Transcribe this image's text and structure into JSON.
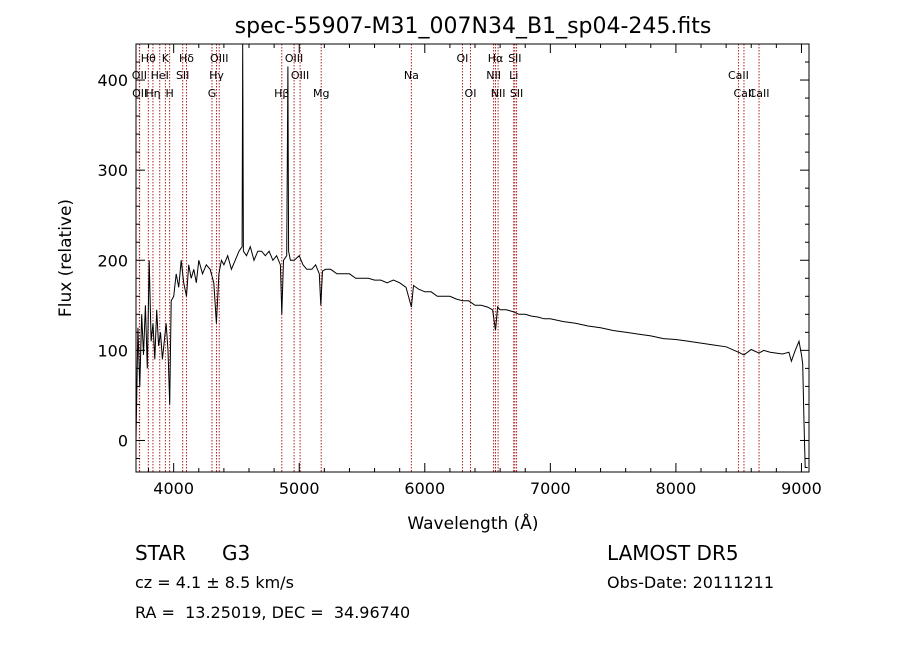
{
  "chart_data": {
    "type": "line",
    "title": "spec-55907-M31_007N34_B1_sp04-245.fits",
    "xlabel": "Wavelength (Å)",
    "ylabel": "Flux (relative)",
    "xlim": [
      3700,
      9060
    ],
    "ylim": [
      -35,
      440
    ],
    "xticks": [
      4000,
      5000,
      6000,
      7000,
      8000,
      9000
    ],
    "yticks": [
      0,
      100,
      200,
      300,
      400
    ],
    "grid": false,
    "line_color": "#000000",
    "marker_color": "#b22222",
    "series": [
      {
        "x": [
          3700,
          3715,
          3730,
          3745,
          3760,
          3775,
          3790,
          3805,
          3820,
          3835,
          3850,
          3865,
          3880,
          3895,
          3910,
          3925,
          3940,
          3955,
          3968,
          3980,
          4000,
          4020,
          4040,
          4060,
          4080,
          4102,
          4120,
          4140,
          4160,
          4180,
          4200,
          4230,
          4260,
          4290,
          4320,
          4340,
          4360,
          4380,
          4400,
          4430,
          4460,
          4490,
          4520,
          4545,
          4550,
          4555,
          4580,
          4610,
          4640,
          4670,
          4700,
          4730,
          4760,
          4790,
          4820,
          4850,
          4861,
          4875,
          4900,
          4910,
          4915,
          4930,
          4960,
          5000,
          5030,
          5060,
          5100,
          5130,
          5160,
          5172,
          5185,
          5210,
          5250,
          5300,
          5350,
          5400,
          5450,
          5500,
          5550,
          5600,
          5650,
          5700,
          5750,
          5800,
          5850,
          5893,
          5910,
          5950,
          6000,
          6050,
          6100,
          6150,
          6200,
          6250,
          6300,
          6350,
          6400,
          6450,
          6500,
          6540,
          6563,
          6580,
          6600,
          6650,
          6700,
          6750,
          6800,
          6850,
          6900,
          6950,
          7000,
          7100,
          7200,
          7300,
          7400,
          7500,
          7600,
          7700,
          7800,
          7900,
          8000,
          8100,
          8200,
          8300,
          8400,
          8498,
          8542,
          8600,
          8662,
          8700,
          8750,
          8800,
          8850,
          8900,
          8920,
          8950,
          8980,
          9000,
          9010,
          9020,
          9030,
          9040,
          9050
        ],
        "y": [
          0,
          125,
          60,
          140,
          95,
          150,
          80,
          200,
          110,
          130,
          90,
          145,
          105,
          120,
          90,
          110,
          130,
          100,
          40,
          155,
          160,
          185,
          170,
          200,
          175,
          160,
          195,
          180,
          190,
          175,
          200,
          185,
          195,
          190,
          175,
          130,
          185,
          200,
          195,
          205,
          190,
          200,
          210,
          215,
          440,
          210,
          205,
          215,
          200,
          210,
          210,
          205,
          210,
          200,
          205,
          195,
          140,
          200,
          205,
          415,
          210,
          200,
          200,
          205,
          195,
          190,
          190,
          195,
          185,
          150,
          188,
          190,
          190,
          185,
          185,
          185,
          180,
          180,
          180,
          178,
          178,
          175,
          178,
          175,
          170,
          148,
          172,
          168,
          165,
          165,
          160,
          160,
          160,
          157,
          155,
          155,
          150,
          150,
          148,
          145,
          122,
          148,
          145,
          145,
          143,
          140,
          140,
          138,
          137,
          135,
          135,
          132,
          130,
          127,
          125,
          122,
          120,
          118,
          116,
          113,
          112,
          110,
          108,
          106,
          104,
          98,
          95,
          101,
          97,
          100,
          98,
          97,
          96,
          98,
          88,
          100,
          110,
          95,
          85,
          20,
          -30,
          -30,
          -30
        ]
      }
    ],
    "lines_row1": [
      {
        "name": "Hθ",
        "x": 3798
      },
      {
        "name": "K",
        "x": 3934
      },
      {
        "name": "Hδ",
        "x": 4102
      },
      {
        "name": "OIII",
        "x": 4363
      },
      {
        "name": "OIII",
        "x": 4959
      },
      {
        "name": "OI",
        "x": 6300
      },
      {
        "name": "Hα",
        "x": 6563
      },
      {
        "name": "SII",
        "x": 6717
      }
    ],
    "lines_row2": [
      {
        "name": "OII",
        "x": 3727
      },
      {
        "name": "HeI",
        "x": 3889
      },
      {
        "name": "SII",
        "x": 4072
      },
      {
        "name": "Hγ",
        "x": 4341
      },
      {
        "name": "OIII",
        "x": 5007
      },
      {
        "name": "Na",
        "x": 5893
      },
      {
        "name": "NII",
        "x": 6548
      },
      {
        "name": "Li",
        "x": 6708
      },
      {
        "name": "CaII",
        "x": 8498
      }
    ],
    "lines_row3": [
      {
        "name": "OII",
        "x": 3729
      },
      {
        "name": "Hη",
        "x": 3835
      },
      {
        "name": "H",
        "x": 3968
      },
      {
        "name": "G",
        "x": 4305
      },
      {
        "name": "Hβ",
        "x": 4861
      },
      {
        "name": "Mg",
        "x": 5175
      },
      {
        "name": "OI",
        "x": 6364
      },
      {
        "name": "NII",
        "x": 6584
      },
      {
        "name": "SII",
        "x": 6731
      },
      {
        "name": "CaII",
        "x": 8542
      },
      {
        "name": "CaII",
        "x": 8662
      }
    ]
  },
  "info": {
    "object_class": "STAR",
    "subclass": "G3",
    "survey": "LAMOST DR5",
    "redshift_text": "cz = 4.1 ± 8.5 km/s",
    "obs_date_text": "Obs-Date: 20111211",
    "coords_text": "RA =  13.25019, DEC =  34.96740"
  }
}
